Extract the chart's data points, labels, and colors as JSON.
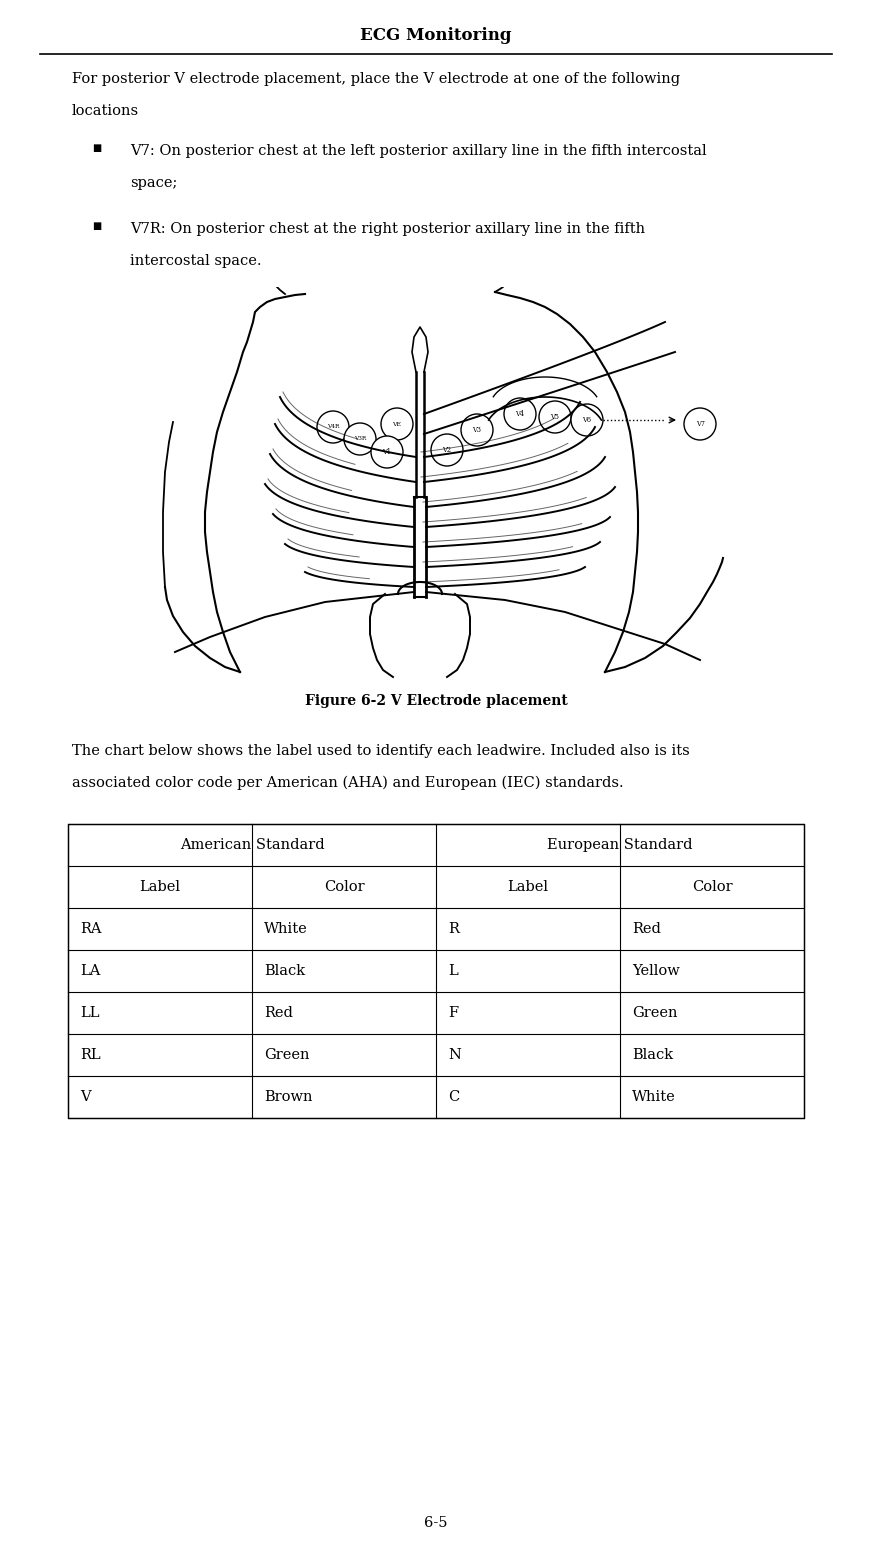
{
  "title": "ECG Monitoring",
  "page_number": "6-5",
  "intro_line1": "For posterior V electrode placement, place the V electrode at one of the following",
  "intro_line2": "locations",
  "bullet1_line1": "V7: On posterior chest at the left posterior axillary line in the fifth intercostal",
  "bullet1_line2": "space;",
  "bullet2_line1": "V7R: On posterior chest at the right posterior axillary line in the fifth",
  "bullet2_line2": "intercostal space.",
  "figure_caption": "Figure 6-2 V Electrode placement",
  "chart_intro_line1": "The chart below shows the label used to identify each leadwire. Included also is its",
  "chart_intro_line2": "associated color code per American (AHA) and European (IEC) standards.",
  "table_header_american": "American Standard",
  "table_header_european": "European Standard",
  "table_subheader": [
    "Label",
    "Color",
    "Label",
    "Color"
  ],
  "table_rows": [
    [
      "RA",
      "White",
      "R",
      "Red"
    ],
    [
      "LA",
      "Black",
      "L",
      "Yellow"
    ],
    [
      "LL",
      "Red",
      "F",
      "Green"
    ],
    [
      "RL",
      "Green",
      "N",
      "Black"
    ],
    [
      "V",
      "Brown",
      "C",
      "White"
    ]
  ],
  "bg_color": "#ffffff",
  "text_color": "#000000",
  "font_size_title": 12,
  "font_size_body": 10.5,
  "font_size_table": 10.5,
  "font_size_caption": 10,
  "font_size_page": 10.5
}
